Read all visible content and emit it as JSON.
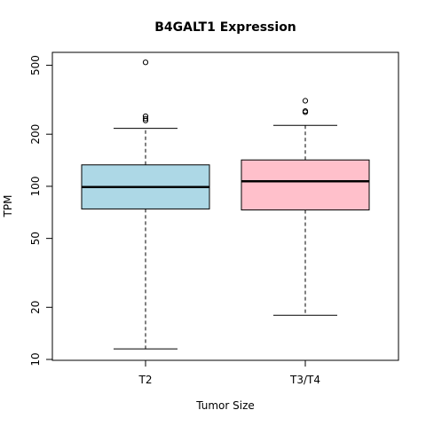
{
  "chart_data": {
    "type": "box",
    "title": "B4GALT1 Expression",
    "xlabel": "Tumor Size",
    "ylabel": "TPM",
    "y_scale": "log",
    "ylim": [
      10,
      580
    ],
    "y_ticks": [
      10,
      20,
      50,
      100,
      200,
      500
    ],
    "y_tick_labels": [
      "10",
      "20",
      "50",
      "100",
      "200",
      "500"
    ],
    "grid": false,
    "categories": [
      "T2",
      "T3/T4"
    ],
    "boxes": [
      {
        "category": "T2",
        "color": "#add8e6",
        "whisker_low": 11.5,
        "q1": 74,
        "median": 99,
        "q3": 133,
        "whisker_high": 216,
        "outliers": [
          240,
          246,
          254,
          520
        ]
      },
      {
        "category": "T3/T4",
        "color": "#ffc0cb",
        "whisker_low": 18,
        "q1": 73,
        "median": 107,
        "q3": 142,
        "whisker_high": 225,
        "outliers": [
          268,
          272,
          312
        ]
      }
    ]
  }
}
